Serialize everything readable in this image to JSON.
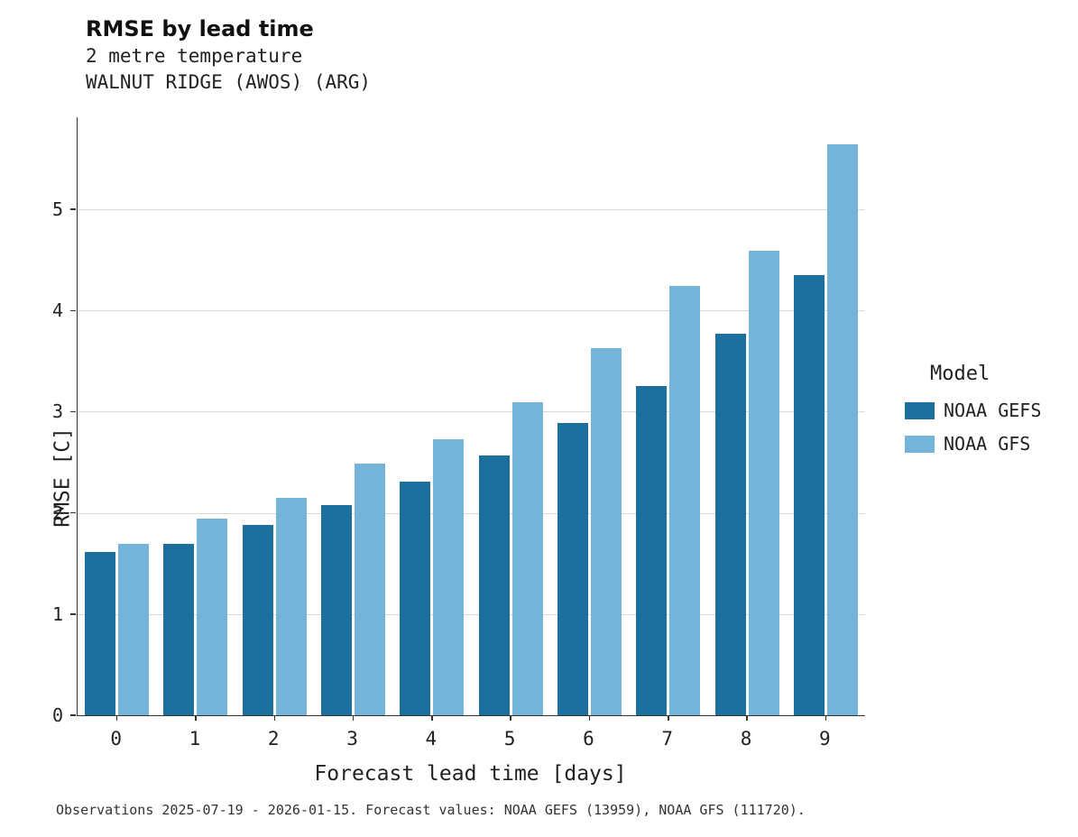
{
  "title": "RMSE by lead time",
  "subtitle_line1": "2 metre temperature",
  "subtitle_line2": "WALNUT RIDGE (AWOS) (ARG)",
  "xlabel": "Forecast lead time [days]",
  "ylabel": "RMSE [C]",
  "legend": {
    "title": "Model",
    "entries": [
      {
        "label": "NOAA GEFS",
        "color": "#1d6f9d"
      },
      {
        "label": "NOAA GFS",
        "color": "#74b4d8"
      }
    ]
  },
  "caption": "Observations 2025-07-19 - 2026-01-15. Forecast values: NOAA GEFS (13959), NOAA GFS (111720).",
  "chart_data": {
    "type": "bar",
    "title": "RMSE by lead time",
    "subtitle": [
      "2 metre temperature",
      "WALNUT RIDGE (AWOS) (ARG)"
    ],
    "categories": [
      "0",
      "1",
      "2",
      "3",
      "4",
      "5",
      "6",
      "7",
      "8",
      "9"
    ],
    "series": [
      {
        "name": "NOAA GEFS",
        "color": "#1d6f9d",
        "values": [
          1.61,
          1.69,
          1.88,
          2.08,
          2.31,
          2.57,
          2.89,
          3.25,
          3.77,
          4.35
        ]
      },
      {
        "name": "NOAA GFS",
        "color": "#74b4d8",
        "values": [
          1.69,
          1.94,
          2.15,
          2.49,
          2.73,
          3.09,
          3.63,
          4.24,
          4.59,
          5.64
        ]
      }
    ],
    "xlabel": "Forecast lead time [days]",
    "ylabel": "RMSE [C]",
    "ylim": [
      0,
      5.91
    ],
    "yticks": [
      0,
      1,
      2,
      3,
      4,
      5
    ],
    "grid": true,
    "legend_title": "Model",
    "legend_position": "right",
    "caption": "Observations 2025-07-19 - 2026-01-15. Forecast values: NOAA GEFS (13959), NOAA GFS (111720)."
  }
}
